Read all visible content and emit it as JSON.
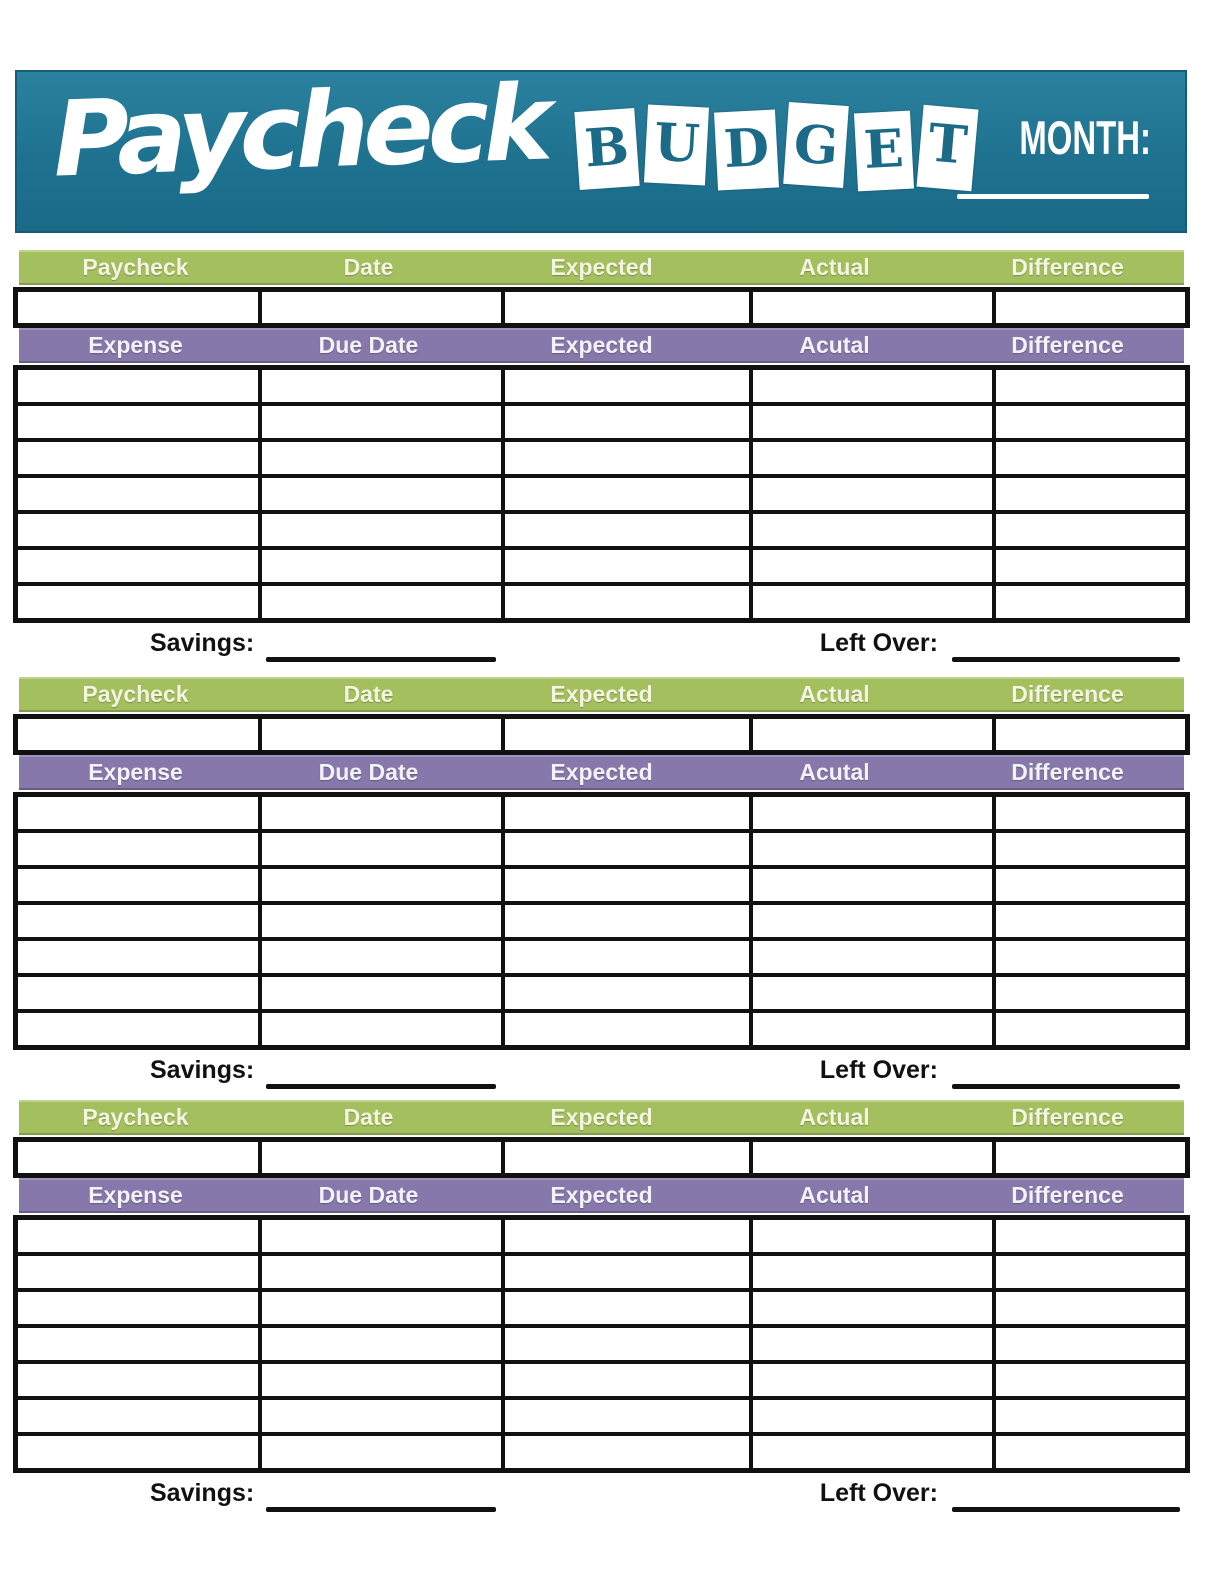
{
  "banner": {
    "script_title": "Paycheck",
    "block_title_letters": [
      "B",
      "U",
      "D",
      "G",
      "E",
      "T"
    ],
    "month_label": "MONTH:"
  },
  "colors": {
    "banner_teal": "#1e7290",
    "banner_teal_light": "#2b819e",
    "banner_teal_dark": "#1a6a88",
    "header_green": "#a4bf5e",
    "header_purple": "#8678ab",
    "border_black": "#111111"
  },
  "sections": [
    {
      "paycheck_headers": [
        "Paycheck",
        "Date",
        "Expected",
        "Actual",
        "Difference"
      ],
      "expense_headers": [
        "Expense",
        "Due Date",
        "Expected",
        "Acutal",
        "Difference"
      ],
      "savings_label": "Savings:",
      "left_over_label": "Left Over:"
    },
    {
      "paycheck_headers": [
        "Paycheck",
        "Date",
        "Expected",
        "Actual",
        "Difference"
      ],
      "expense_headers": [
        "Expense",
        "Due Date",
        "Expected",
        "Acutal",
        "Difference"
      ],
      "savings_label": "Savings:",
      "left_over_label": "Left Over:"
    },
    {
      "paycheck_headers": [
        "Paycheck",
        "Date",
        "Expected",
        "Actual",
        "Difference"
      ],
      "expense_headers": [
        "Expense",
        "Due Date",
        "Expected",
        "Acutal",
        "Difference"
      ],
      "savings_label": "Savings:",
      "left_over_label": "Left Over:"
    }
  ]
}
